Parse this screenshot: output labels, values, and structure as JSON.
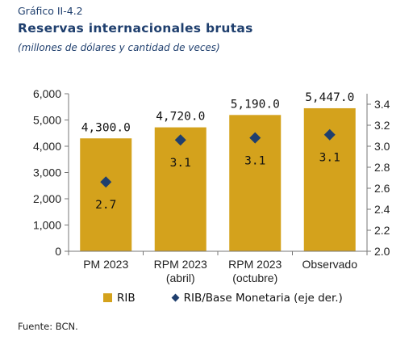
{
  "header": {
    "kicker": "Gráfico II-4.2",
    "title": "Reservas internacionales brutas",
    "subtitle": "(millones de dólares y cantidad de veces)"
  },
  "legend": {
    "bar_label": "RIB",
    "marker_label": "RIB/Base Monetaria (eje der.)"
  },
  "source": "Fuente: BCN.",
  "colors": {
    "bar": "#d4a21c",
    "marker": "#1f3f6e",
    "axis": "#777777"
  },
  "chart_data": {
    "type": "bar",
    "categories": [
      [
        "PM 2023"
      ],
      [
        "RPM 2023",
        "(abril)"
      ],
      [
        "RPM 2023",
        "(octubre)"
      ],
      [
        "Observado"
      ]
    ],
    "series": [
      {
        "name": "RIB",
        "type": "bar",
        "axis": "left",
        "values": [
          4300.0,
          4720.0,
          5190.0,
          5447.0
        ],
        "labels": [
          "4,300.0",
          "4,720.0",
          "5,190.0",
          "5,447.0"
        ]
      },
      {
        "name": "RIB/Base Monetaria (eje der.)",
        "type": "scatter",
        "marker": "diamond",
        "axis": "right",
        "values": [
          2.66,
          3.06,
          3.08,
          3.11
        ],
        "labels": [
          "2.7",
          "3.1",
          "3.1",
          "3.1"
        ]
      }
    ],
    "y_left": {
      "min": 0,
      "max": 6000,
      "ticks": [
        0,
        1000,
        2000,
        3000,
        4000,
        5000,
        6000
      ],
      "tick_labels": [
        "0",
        "1,000",
        "2,000",
        "3,000",
        "4,000",
        "5,000",
        "6,000"
      ]
    },
    "y_right": {
      "min": 2.0,
      "max": 3.5,
      "ticks": [
        2.0,
        2.2,
        2.4,
        2.6,
        2.8,
        3.0,
        3.2,
        3.4
      ],
      "tick_labels": [
        "2.0",
        "2.2",
        "2.4",
        "2.6",
        "2.8",
        "3.0",
        "3.2",
        "3.4"
      ]
    },
    "grid": false,
    "legend_position": "bottom"
  }
}
